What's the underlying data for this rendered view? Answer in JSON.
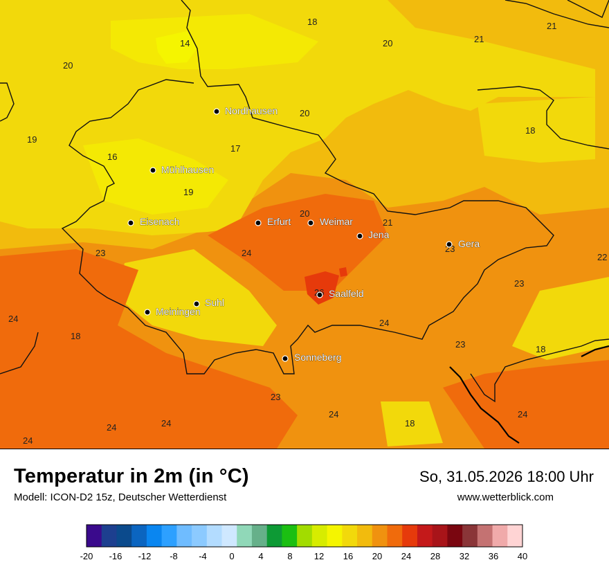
{
  "title": "Temperatur in 2m (in °C)",
  "model": "Modell: ICON-D2 15z, Deutscher Wetterdienst",
  "datetime": "So, 31.05.2026 18:00 Uhr",
  "website": "www.wetterblick.com",
  "map": {
    "cities": [
      {
        "name": "Nordhausen"
      },
      {
        "name": "Mühlhausen"
      },
      {
        "name": "Eisenach"
      },
      {
        "name": "Erfurt"
      },
      {
        "name": "Weimar"
      },
      {
        "name": "Jena"
      },
      {
        "name": "Gera"
      },
      {
        "name": "Suhl"
      },
      {
        "name": "Meiningen"
      },
      {
        "name": "Saalfeld"
      },
      {
        "name": "Sonneberg"
      }
    ],
    "temperature_labels": [
      "18",
      "20",
      "21",
      "21",
      "14",
      "20",
      "20",
      "19",
      "16",
      "17",
      "18",
      "19",
      "20",
      "21",
      "23",
      "24",
      "23",
      "22",
      "26",
      "24",
      "23",
      "24",
      "18",
      "23",
      "18",
      "23",
      "24",
      "24",
      "24",
      "18",
      "24",
      "24"
    ]
  },
  "legend": {
    "values": [
      "-20",
      "-16",
      "-12",
      "-8",
      "-4",
      "0",
      "4",
      "8",
      "12",
      "16",
      "20",
      "24",
      "28",
      "32",
      "36",
      "40"
    ],
    "colors": [
      "#3a0a8c",
      "#1d3f8f",
      "#0b4a8c",
      "#0b65c0",
      "#0a86f0",
      "#2da0ff",
      "#6fbcff",
      "#8ccaff",
      "#b3dcff",
      "#cfe8ff",
      "#90d8b8",
      "#66b08a",
      "#0d9a35",
      "#1bbf12",
      "#a2dc00",
      "#d7ec00",
      "#f5f500",
      "#f2d90b",
      "#f2bb0d",
      "#f0920f",
      "#f06b0c",
      "#e63a0b",
      "#c4191a",
      "#a81419",
      "#7a0610",
      "#8a3538",
      "#c47272",
      "#f0aaaa",
      "#ffd4d4"
    ]
  }
}
